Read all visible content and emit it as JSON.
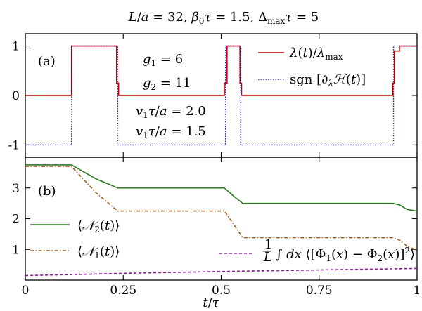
{
  "title": "L/a = 32, β₀τ = 1.5, Δ_maxτ = 5",
  "xlabel": "t/τ",
  "chart_data": [
    {
      "type": "line",
      "panel_label": "(a)",
      "xlim": [
        0,
        1
      ],
      "ylim": [
        -1.25,
        1.25
      ],
      "yticks": [
        {
          "v": 1,
          "label": "1"
        },
        {
          "v": 0,
          "label": "0"
        },
        {
          "v": -1,
          "label": "-1"
        }
      ],
      "annotations": [
        "g₁ = 6",
        "g₂ = 11",
        "v₁τ/a = 2.0",
        "v₁τ/a = 1.5"
      ],
      "series": [
        {
          "name": "λ(t)/λ_max",
          "color": "#c00000",
          "style": "solid",
          "x": [
            0,
            0.118,
            0.118,
            0.233,
            0.233,
            0.238,
            0.238,
            0.508,
            0.508,
            0.515,
            0.515,
            0.548,
            0.548,
            0.552,
            0.552,
            0.938,
            0.938,
            0.942,
            0.942,
            0.955,
            0.955,
            1.0
          ],
          "y": [
            0,
            0,
            1,
            1,
            0.25,
            0.25,
            0,
            0,
            0.25,
            0.25,
            1,
            1,
            0.25,
            0.25,
            0,
            0,
            0.25,
            0.25,
            0.9,
            0.9,
            1,
            1
          ]
        },
        {
          "name": "sgn [∂_λℋ(t)]",
          "color": "#1a1a8c",
          "style": "dotted",
          "x": [
            0,
            0.118,
            0.118,
            0.236,
            0.236,
            0.511,
            0.511,
            0.55,
            0.55,
            0.94,
            0.94,
            1.0
          ],
          "y": [
            -1,
            -1,
            1,
            1,
            -1,
            -1,
            1,
            1,
            -1,
            -1,
            1,
            1
          ]
        }
      ]
    },
    {
      "type": "line",
      "panel_label": "(b)",
      "xlim": [
        0,
        1
      ],
      "ylim": [
        0,
        4
      ],
      "xticks": [
        {
          "v": 0,
          "label": "0"
        },
        {
          "v": 0.25,
          "label": "0.25"
        },
        {
          "v": 0.5,
          "label": "0.5"
        },
        {
          "v": 0.75,
          "label": "0.75"
        },
        {
          "v": 1,
          "label": "1"
        }
      ],
      "yticks": [
        {
          "v": 3,
          "label": "3"
        },
        {
          "v": 2,
          "label": "2"
        },
        {
          "v": 1,
          "label": "1"
        }
      ],
      "series": [
        {
          "name": "⟨𝒩₂(t)⟩",
          "color": "#2a7a1e",
          "style": "solid",
          "x": [
            0,
            0.118,
            0.18,
            0.236,
            0.508,
            0.535,
            0.555,
            0.938,
            0.955,
            0.975,
            1.0
          ],
          "y": [
            3.75,
            3.75,
            3.3,
            3.0,
            3.0,
            2.7,
            2.5,
            2.5,
            2.45,
            2.3,
            2.25
          ]
        },
        {
          "name": "⟨𝒩₁(t)⟩",
          "color": "#9a5a1a",
          "style": "dashdot",
          "x": [
            0,
            0.118,
            0.18,
            0.236,
            0.508,
            0.53,
            0.555,
            0.938,
            0.955,
            0.975,
            1.0
          ],
          "y": [
            3.7,
            3.7,
            2.85,
            2.25,
            2.25,
            1.85,
            1.38,
            1.38,
            1.3,
            1.1,
            0.97
          ]
        },
        {
          "name": "(1/L) ∫ dx ⟨[Φ₁(x) − Φ₂(x)]²⟩",
          "color": "#8a1a9a",
          "style": "dashed",
          "x": [
            0,
            0.118,
            0.25,
            0.5,
            0.75,
            1.0
          ],
          "y": [
            0.15,
            0.18,
            0.22,
            0.28,
            0.33,
            0.38
          ]
        }
      ]
    }
  ]
}
